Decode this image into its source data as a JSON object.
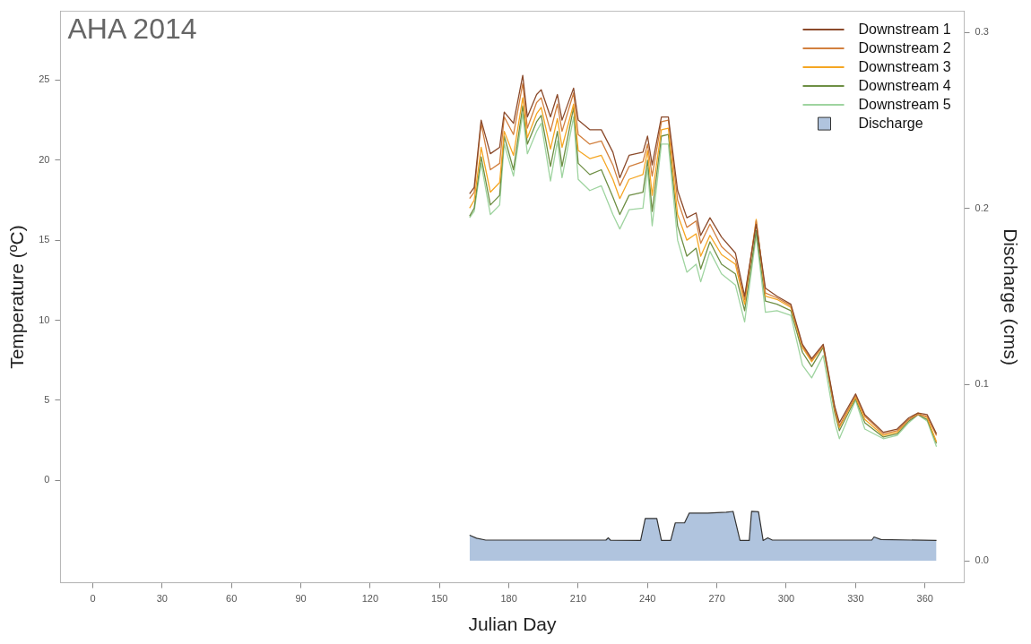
{
  "chart_data": {
    "type": "line",
    "title": "AHA 2014",
    "xlabel": "Julian Day",
    "ylabel": "Temperature (ºC)",
    "y2label": "Discharge (cms)",
    "xlim": [
      -14,
      377
    ],
    "xticks": [
      0,
      30,
      60,
      90,
      120,
      150,
      180,
      210,
      240,
      270,
      300,
      330,
      360
    ],
    "ylim": [
      -6.4,
      29.3
    ],
    "yticks": [
      0,
      5,
      10,
      15,
      20,
      25
    ],
    "y2lim": [
      -0.0125,
      0.312
    ],
    "y2ticks": [
      {
        "value": 0,
        "label": "0.0"
      },
      {
        "value": 0.1,
        "label": "0.1"
      },
      {
        "value": 0.2,
        "label": "0.2"
      },
      {
        "value": 0.3,
        "label": "0.3"
      }
    ],
    "grid": false,
    "legend": "top right",
    "x": [
      163,
      165,
      168,
      172,
      176,
      178,
      182,
      186,
      188,
      192,
      194,
      198,
      201,
      203,
      208,
      210,
      215,
      220,
      225,
      228,
      232,
      238,
      240,
      242,
      246,
      249,
      253,
      257,
      261,
      263,
      267,
      272,
      278,
      282,
      287,
      291,
      296,
      302,
      307,
      311,
      316,
      321,
      323,
      330,
      334,
      342,
      348,
      353,
      357,
      361,
      365
    ],
    "series": [
      {
        "name": "Downstream 1",
        "color": "#8b4a2b",
        "values": [
          17.9,
          18.3,
          22.5,
          20.4,
          20.8,
          23.0,
          22.3,
          25.3,
          22.7,
          24.1,
          24.4,
          22.7,
          24.1,
          22.5,
          24.5,
          22.5,
          21.9,
          21.9,
          20.5,
          18.9,
          20.3,
          20.5,
          21.5,
          19.7,
          22.7,
          22.7,
          18.1,
          16.4,
          16.7,
          15.3,
          16.4,
          15.2,
          14.2,
          11.5,
          16.0,
          12.0,
          11.5,
          11.0,
          8.5,
          7.6,
          8.5,
          4.6,
          3.6,
          5.4,
          4.1,
          3.0,
          3.2,
          3.9,
          4.2,
          4.1,
          2.9
        ]
      },
      {
        "name": "Downstream 2",
        "color": "#d2803f",
        "values": [
          17.6,
          18.0,
          22.3,
          19.4,
          19.8,
          22.7,
          21.6,
          24.8,
          22.0,
          23.6,
          23.9,
          21.8,
          23.5,
          21.8,
          24.2,
          21.6,
          21.0,
          21.2,
          19.7,
          18.4,
          19.6,
          19.9,
          21.0,
          19.0,
          22.4,
          22.5,
          17.5,
          15.8,
          16.2,
          14.8,
          16.0,
          14.6,
          13.8,
          11.3,
          16.2,
          11.7,
          11.4,
          10.9,
          8.4,
          7.5,
          8.4,
          4.5,
          3.4,
          5.3,
          4.0,
          2.9,
          3.1,
          3.8,
          4.1,
          4.0,
          2.8
        ]
      },
      {
        "name": "Downstream 3",
        "color": "#f5a623",
        "values": [
          17.0,
          17.5,
          20.8,
          18.0,
          18.6,
          21.8,
          20.3,
          23.9,
          21.4,
          22.9,
          23.3,
          20.7,
          22.6,
          20.8,
          23.5,
          20.6,
          20.1,
          20.3,
          18.8,
          17.6,
          18.8,
          19.1,
          20.6,
          17.8,
          21.9,
          22.0,
          16.6,
          15.0,
          15.4,
          14.0,
          15.3,
          14.1,
          13.5,
          11.0,
          16.3,
          11.5,
          11.3,
          10.8,
          8.3,
          7.4,
          8.4,
          4.4,
          3.3,
          5.2,
          3.8,
          2.8,
          3.0,
          3.8,
          4.2,
          3.9,
          2.4
        ]
      },
      {
        "name": "Downstream 4",
        "color": "#6e8f45",
        "values": [
          16.5,
          17.0,
          20.2,
          17.2,
          17.8,
          21.5,
          19.4,
          23.4,
          21.0,
          22.4,
          22.8,
          19.6,
          21.8,
          19.6,
          23.3,
          19.8,
          19.1,
          19.4,
          17.7,
          16.6,
          17.8,
          18.0,
          20.0,
          16.8,
          21.5,
          21.6,
          15.9,
          14.0,
          14.5,
          13.2,
          14.9,
          13.5,
          12.9,
          10.6,
          15.6,
          11.2,
          11.0,
          10.6,
          8.0,
          7.1,
          8.3,
          4.2,
          3.1,
          5.1,
          3.6,
          2.7,
          2.9,
          3.7,
          4.1,
          3.8,
          2.3
        ]
      },
      {
        "name": "Downstream 5",
        "color": "#9fd4a0",
        "values": [
          16.4,
          16.8,
          19.8,
          16.6,
          17.2,
          21.0,
          19.0,
          22.9,
          20.4,
          21.8,
          22.3,
          18.7,
          21.2,
          18.9,
          22.7,
          18.8,
          18.1,
          18.4,
          16.6,
          15.7,
          16.9,
          17.0,
          19.5,
          15.9,
          21.0,
          21.0,
          15.0,
          13.0,
          13.5,
          12.4,
          14.3,
          12.9,
          12.2,
          9.9,
          15.3,
          10.5,
          10.6,
          10.3,
          7.2,
          6.4,
          7.8,
          3.6,
          2.6,
          5.0,
          3.2,
          2.6,
          2.8,
          3.6,
          4.1,
          3.7,
          2.1
        ]
      },
      {
        "name": "Discharge",
        "type": "area",
        "axis": "y2",
        "color": "#b0c4de",
        "x": [
          163,
          166,
          170,
          222,
          223,
          224,
          237,
          239,
          244,
          246,
          250,
          252,
          256,
          258,
          266,
          274,
          277,
          280,
          284,
          285,
          288,
          290,
          292,
          294,
          337,
          338,
          341,
          365
        ],
        "values": [
          0.0145,
          0.0128,
          0.0117,
          0.0117,
          0.013,
          0.0116,
          0.0115,
          0.024,
          0.024,
          0.0115,
          0.0115,
          0.0215,
          0.0215,
          0.027,
          0.027,
          0.0275,
          0.028,
          0.0115,
          0.0115,
          0.028,
          0.0278,
          0.0115,
          0.013,
          0.0117,
          0.0117,
          0.0135,
          0.012,
          0.0115
        ]
      }
    ]
  }
}
